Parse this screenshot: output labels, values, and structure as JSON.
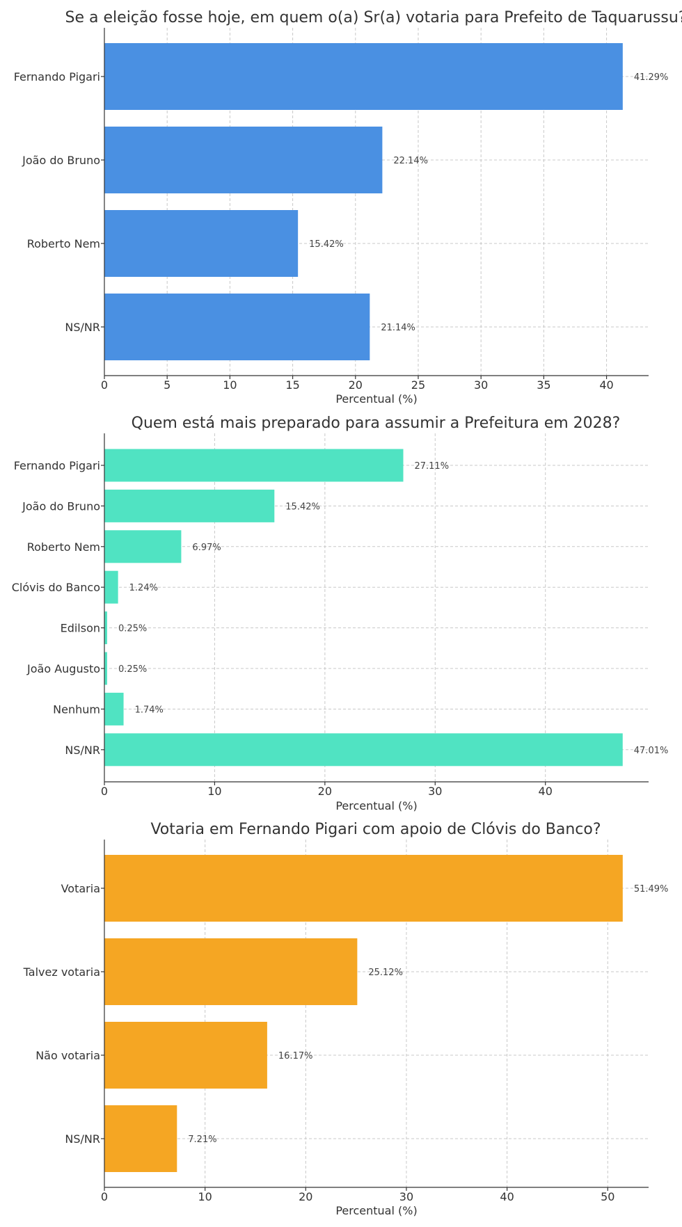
{
  "chart_data": [
    {
      "type": "bar",
      "orientation": "horizontal",
      "title": "Se a eleição fosse hoje, em quem o(a) Sr(a) votaria para Prefeito de Taquarussu?",
      "categories": [
        "Fernando Pigari",
        "João do Bruno",
        "Roberto Nem",
        "NS/NR"
      ],
      "values": [
        41.29,
        22.14,
        15.42,
        21.14
      ],
      "value_labels": [
        "41.29%",
        "22.14%",
        "15.42%",
        "21.14%"
      ],
      "xlabel": "Percentual (%)",
      "ylabel": "",
      "xlim": [
        0,
        43.35
      ],
      "xticks": [
        0,
        5,
        10,
        15,
        20,
        25,
        30,
        35,
        40
      ],
      "xtick_labels": [
        "0",
        "5",
        "10",
        "15",
        "20",
        "25",
        "30",
        "35",
        "40"
      ],
      "grid": true,
      "color": "#4a90e2"
    },
    {
      "type": "bar",
      "orientation": "horizontal",
      "title": "Quem está mais preparado para assumir a Prefeitura em 2028?",
      "categories": [
        "Fernando Pigari",
        "João do Bruno",
        "Roberto Nem",
        "Clóvis do Banco",
        "Edilson",
        "João Augusto",
        "Nenhum",
        "NS/NR"
      ],
      "values": [
        27.11,
        15.42,
        6.97,
        1.24,
        0.25,
        0.25,
        1.74,
        47.01
      ],
      "value_labels": [
        "27.11%",
        "15.42%",
        "6.97%",
        "1.24%",
        "0.25%",
        "0.25%",
        "1.74%",
        "47.01%"
      ],
      "xlabel": "Percentual (%)",
      "ylabel": "",
      "xlim": [
        0,
        49.36
      ],
      "xticks": [
        0,
        10,
        20,
        30,
        40
      ],
      "xtick_labels": [
        "0",
        "10",
        "20",
        "30",
        "40"
      ],
      "grid": true,
      "color": "#50e3c2"
    },
    {
      "type": "bar",
      "orientation": "horizontal",
      "title": "Votaria em Fernando Pigari com apoio de Clóvis do Banco?",
      "categories": [
        "Votaria",
        "Talvez votaria",
        "Não votaria",
        "NS/NR"
      ],
      "values": [
        51.49,
        25.12,
        16.17,
        7.21
      ],
      "value_labels": [
        "51.49%",
        "25.12%",
        "16.17%",
        "7.21%"
      ],
      "xlabel": "Percentual (%)",
      "ylabel": "",
      "xlim": [
        0,
        54.06
      ],
      "xticks": [
        0,
        10,
        20,
        30,
        40,
        50
      ],
      "xtick_labels": [
        "0",
        "10",
        "20",
        "30",
        "40",
        "50"
      ],
      "grid": true,
      "color": "#f5a623"
    }
  ]
}
